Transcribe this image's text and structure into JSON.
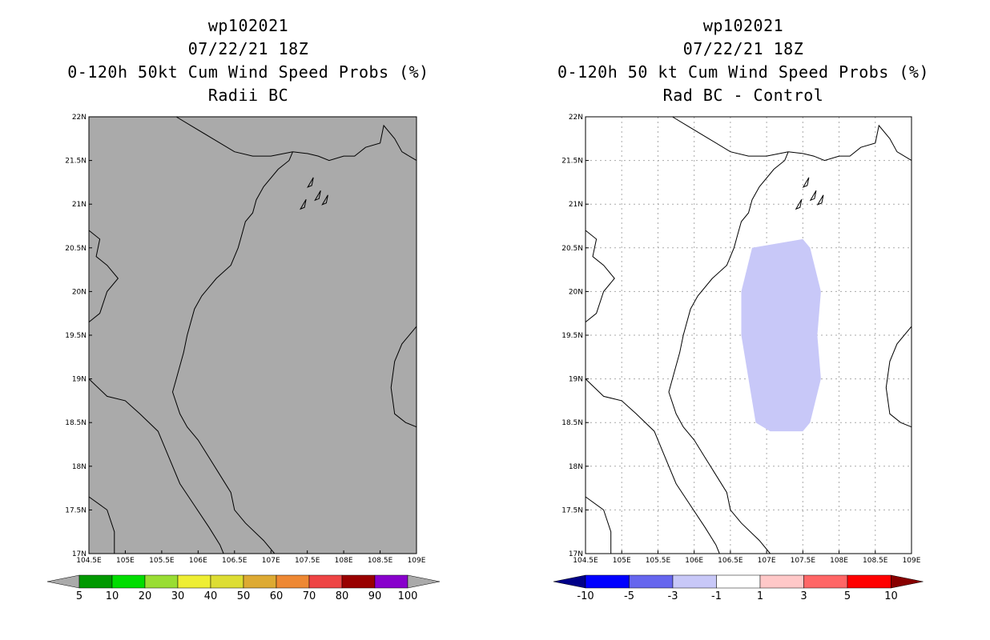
{
  "left_panel": {
    "title_lines": [
      "wp102021",
      "07/22/21 18Z",
      "0-120h 50kt Cum Wind Speed Probs (%)",
      "Radii BC"
    ],
    "colorbar": {
      "labels": [
        "5",
        "10",
        "20",
        "30",
        "40",
        "50",
        "60",
        "70",
        "80",
        "90",
        "100"
      ],
      "colors": [
        "#009900",
        "#00dd00",
        "#99dd33",
        "#eeee33",
        "#dddd33",
        "#ddaa33",
        "#ee8833",
        "#ee4444",
        "#990000",
        "#8800cc"
      ],
      "below_color": "#aaaaaa",
      "above_color": "#aaaaaa"
    },
    "map_fill_color": "#aaaaaa"
  },
  "right_panel": {
    "title_lines": [
      "wp102021",
      "07/22/21 18Z",
      "0-120h 50 kt Cum Wind Speed Probs (%)",
      "Rad BC - Control"
    ],
    "colorbar": {
      "labels": [
        "-10",
        "-5",
        "-3",
        "-1",
        "1",
        "3",
        "5",
        "10"
      ],
      "colors": [
        "#0000ff",
        "#6666ee",
        "#c8c8f8",
        "#ffffff",
        "#ffc8c8",
        "#ff6666",
        "#ff0000"
      ],
      "below_color": "#000088",
      "above_color": "#880000"
    },
    "shaded_region": {
      "value_range": "-3 to -1",
      "color": "#c8c8f8",
      "polygon_lonlat": [
        [
          106.8,
          20.5
        ],
        [
          107.5,
          20.6
        ],
        [
          107.6,
          20.5
        ],
        [
          107.75,
          20.0
        ],
        [
          107.7,
          19.5
        ],
        [
          107.75,
          19.0
        ],
        [
          107.6,
          18.5
        ],
        [
          107.5,
          18.4
        ],
        [
          107.05,
          18.4
        ],
        [
          106.85,
          18.5
        ],
        [
          106.65,
          19.5
        ],
        [
          106.65,
          20.0
        ]
      ]
    }
  },
  "axes": {
    "lon_labels": [
      "104.5E",
      "105E",
      "105.5E",
      "106E",
      "106.5E",
      "107E",
      "107.5E",
      "108E",
      "108.5E",
      "109E"
    ],
    "lat_labels": [
      "17N",
      "17.5N",
      "18N",
      "18.5N",
      "19N",
      "19.5N",
      "20N",
      "20.5N",
      "21N",
      "21.5N",
      "22N"
    ],
    "lon_min": 104.5,
    "lon_max": 109.0,
    "lat_min": 17.0,
    "lat_max": 22.0
  },
  "coastlines": {
    "mainland": [
      [
        107.3,
        21.6
      ],
      [
        107.25,
        21.5
      ],
      [
        107.1,
        21.4
      ],
      [
        106.9,
        21.2
      ],
      [
        106.8,
        21.05
      ],
      [
        106.75,
        20.9
      ],
      [
        106.65,
        20.8
      ],
      [
        106.6,
        20.65
      ],
      [
        106.55,
        20.5
      ],
      [
        106.45,
        20.3
      ],
      [
        106.25,
        20.15
      ],
      [
        106.05,
        19.95
      ],
      [
        105.95,
        19.8
      ],
      [
        105.85,
        19.5
      ],
      [
        105.8,
        19.3
      ],
      [
        105.7,
        19.0
      ],
      [
        105.65,
        18.85
      ],
      [
        105.75,
        18.6
      ],
      [
        105.85,
        18.45
      ],
      [
        106.0,
        18.3
      ],
      [
        106.15,
        18.1
      ],
      [
        106.3,
        17.9
      ],
      [
        106.45,
        17.7
      ],
      [
        106.5,
        17.5
      ],
      [
        106.65,
        17.35
      ],
      [
        106.9,
        17.15
      ],
      [
        107.05,
        17.0
      ]
    ],
    "coast_ne": [
      [
        107.3,
        21.6
      ],
      [
        107.5,
        21.58
      ],
      [
        107.65,
        21.55
      ],
      [
        107.8,
        21.5
      ],
      [
        108.0,
        21.55
      ],
      [
        108.15,
        21.55
      ],
      [
        108.3,
        21.65
      ],
      [
        108.5,
        21.7
      ],
      [
        108.55,
        21.9
      ],
      [
        108.7,
        21.75
      ],
      [
        108.8,
        21.6
      ],
      [
        109.0,
        21.5
      ]
    ],
    "hainan": [
      [
        109.0,
        19.6
      ],
      [
        108.8,
        19.4
      ],
      [
        108.7,
        19.2
      ],
      [
        108.65,
        18.9
      ],
      [
        108.7,
        18.6
      ],
      [
        108.85,
        18.5
      ],
      [
        109.0,
        18.45
      ]
    ],
    "border_north": [
      [
        105.7,
        22.0
      ],
      [
        105.9,
        21.9
      ],
      [
        106.2,
        21.75
      ],
      [
        106.5,
        21.6
      ],
      [
        106.75,
        21.55
      ],
      [
        107.0,
        21.55
      ],
      [
        107.3,
        21.6
      ]
    ],
    "border_laos": [
      [
        104.5,
        19.0
      ],
      [
        104.75,
        18.8
      ],
      [
        105.0,
        18.75
      ],
      [
        105.2,
        18.6
      ],
      [
        105.45,
        18.4
      ],
      [
        105.6,
        18.1
      ],
      [
        105.75,
        17.8
      ],
      [
        105.95,
        17.55
      ],
      [
        106.15,
        17.3
      ],
      [
        106.3,
        17.1
      ],
      [
        106.35,
        17.0
      ]
    ],
    "border_west": [
      [
        104.5,
        20.7
      ],
      [
        104.65,
        20.6
      ],
      [
        104.6,
        20.4
      ],
      [
        104.75,
        20.3
      ],
      [
        104.9,
        20.15
      ],
      [
        104.75,
        20.0
      ],
      [
        104.65,
        19.75
      ],
      [
        104.5,
        19.65
      ]
    ],
    "border_sw": [
      [
        104.5,
        17.65
      ],
      [
        104.75,
        17.5
      ],
      [
        104.85,
        17.25
      ],
      [
        104.85,
        17.0
      ]
    ]
  }
}
